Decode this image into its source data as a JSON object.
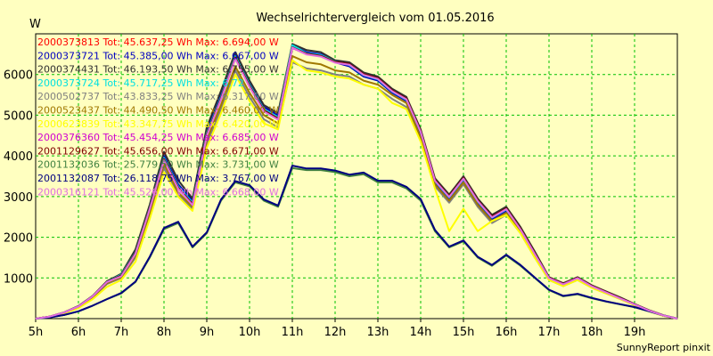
{
  "chart_data": {
    "type": "line",
    "title": "Wechselrichtervergleich vom 01.05.2016",
    "ylabel": "W",
    "credit": "SunnyReport pinxit",
    "xlim": [
      5,
      20
    ],
    "ylim": [
      0,
      7000
    ],
    "x_ticks": [
      5,
      6,
      7,
      8,
      9,
      10,
      11,
      12,
      13,
      14,
      15,
      16,
      17,
      18,
      19
    ],
    "x_tick_labels": [
      "5h",
      "6h",
      "7h",
      "8h",
      "9h",
      "10h",
      "11h",
      "12h",
      "13h",
      "14h",
      "15h",
      "16h",
      "17h",
      "18h",
      "19h"
    ],
    "y_ticks": [
      1000,
      2000,
      3000,
      4000,
      5000,
      6000
    ],
    "y_tick_labels": [
      "1000",
      "2000",
      "3000",
      "4000",
      "5000",
      "6000"
    ],
    "grid": true,
    "legend_position": "top-left",
    "x": [
      5.0,
      5.333,
      5.667,
      6.0,
      6.333,
      6.667,
      7.0,
      7.333,
      7.667,
      8.0,
      8.333,
      8.667,
      9.0,
      9.333,
      9.667,
      10.0,
      10.333,
      10.667,
      11.0,
      11.333,
      11.667,
      12.0,
      12.333,
      12.667,
      13.0,
      13.333,
      13.667,
      14.0,
      14.333,
      14.667,
      15.0,
      15.333,
      15.667,
      16.0,
      16.333,
      16.667,
      17.0,
      17.333,
      17.667,
      18.0,
      18.333,
      18.667,
      19.0,
      19.333,
      19.667,
      20.0
    ],
    "series": [
      {
        "name": "2000373813",
        "legend": "2000373813 Tot: 45.637,25 Wh Max: 6.694,00 W",
        "color": "#ff0000",
        "values": [
          0,
          50,
          150,
          300,
          550,
          900,
          1050,
          1600,
          2700,
          3900,
          3200,
          2800,
          4500,
          5400,
          6400,
          5700,
          5100,
          4900,
          6700,
          6500,
          6450,
          6300,
          6250,
          6000,
          5900,
          5600,
          5400,
          4600,
          3400,
          3000,
          3450,
          2900,
          2500,
          2700,
          2200,
          1600,
          1000,
          850,
          1000,
          800,
          650,
          500,
          350,
          200,
          80,
          0
        ]
      },
      {
        "name": "2000373721",
        "legend": "2000373721 Tot: 45.385,00 Wh Max: 6.667,00 W",
        "color": "#0000c0",
        "values": [
          0,
          50,
          150,
          300,
          550,
          900,
          1100,
          1650,
          2750,
          4000,
          3300,
          2900,
          4600,
          5500,
          6500,
          5800,
          5200,
          5000,
          6700,
          6550,
          6500,
          6300,
          6200,
          5950,
          5850,
          5550,
          5350,
          4550,
          3350,
          2950,
          3400,
          2850,
          2450,
          2650,
          2150,
          1550,
          980,
          830,
          980,
          790,
          640,
          490,
          340,
          190,
          70,
          0
        ]
      },
      {
        "name": "2000374431",
        "legend": "2000374431 Tot: 46.193,50 Wh Max: 6.755,00 W",
        "color": "#303030",
        "values": [
          0,
          50,
          155,
          310,
          560,
          920,
          1100,
          1700,
          2800,
          4100,
          3400,
          2950,
          4700,
          5600,
          6550,
          5850,
          5250,
          5050,
          6750,
          6600,
          6550,
          6350,
          6300,
          6050,
          5950,
          5650,
          5450,
          4650,
          3450,
          3050,
          3500,
          2950,
          2550,
          2750,
          2250,
          1650,
          1020,
          870,
          1020,
          820,
          670,
          520,
          360,
          210,
          85,
          0
        ]
      },
      {
        "name": "2000373724",
        "legend": "2000373724 Tot: 45.717,25 Wh Max: 6.72",
        "color": "#00e0e0",
        "values": [
          0,
          50,
          150,
          300,
          550,
          900,
          1080,
          1620,
          2720,
          3950,
          3250,
          2850,
          4550,
          5450,
          6450,
          5750,
          5150,
          4950,
          6720,
          6520,
          6480,
          6320,
          6230,
          5980,
          5880,
          5580,
          5380,
          4580,
          3380,
          2980,
          3430,
          2880,
          2480,
          2680,
          2180,
          1580,
          990,
          840,
          990,
          800,
          650,
          500,
          345,
          195,
          75,
          0
        ]
      },
      {
        "name": "2000502737",
        "legend": "2000502737 Tot: 43.833,25 Wh Max: 6.317,00 W",
        "color": "#808080",
        "values": [
          0,
          45,
          140,
          280,
          520,
          850,
          1000,
          1500,
          2550,
          3700,
          3050,
          2700,
          4300,
          5150,
          6100,
          5450,
          4900,
          4700,
          6300,
          6150,
          6100,
          6000,
          5950,
          5750,
          5650,
          5400,
          5200,
          4400,
          3250,
          2850,
          3300,
          2750,
          2350,
          2550,
          2100,
          1500,
          950,
          800,
          950,
          760,
          620,
          480,
          330,
          185,
          70,
          0
        ]
      },
      {
        "name": "2000523437",
        "legend": "2000523437 Tot: 44.490,50 Wh Max: 6.460,00 W",
        "color": "#a07800",
        "values": [
          0,
          45,
          145,
          290,
          530,
          870,
          1020,
          1550,
          2600,
          3800,
          3100,
          2750,
          4400,
          5250,
          6200,
          5550,
          5000,
          4800,
          6450,
          6300,
          6250,
          6100,
          6050,
          5850,
          5750,
          5500,
          5300,
          4450,
          3300,
          2900,
          3350,
          2800,
          2400,
          2600,
          2150,
          1550,
          970,
          820,
          970,
          780,
          630,
          490,
          335,
          190,
          72,
          0
        ]
      },
      {
        "name": "2000623839",
        "legend": "2000623839 Tot: 43.347,75 Wh Max: 6.420,00 W",
        "color": "#ffff00",
        "values": [
          0,
          40,
          130,
          260,
          480,
          780,
          950,
          1400,
          2450,
          3600,
          3000,
          2650,
          4200,
          5050,
          6000,
          5350,
          4800,
          4650,
          6350,
          6100,
          6050,
          5950,
          5900,
          5750,
          5650,
          5300,
          5150,
          4350,
          3200,
          2150,
          2700,
          2150,
          2400,
          2550,
          2100,
          1500,
          950,
          800,
          950,
          760,
          620,
          480,
          330,
          185,
          70,
          0
        ]
      },
      {
        "name": "2000376360",
        "legend": "2000376360 Tot: 45.454,25 Wh Max: 6.685,00 W",
        "color": "#d000d0",
        "values": [
          0,
          50,
          150,
          300,
          550,
          900,
          1050,
          1600,
          2700,
          3900,
          3200,
          2800,
          4500,
          5400,
          6400,
          5700,
          5100,
          4900,
          6650,
          6500,
          6450,
          6300,
          6250,
          6000,
          5900,
          5600,
          5400,
          4600,
          3400,
          3000,
          3450,
          2900,
          2500,
          2700,
          2200,
          1600,
          1000,
          850,
          1000,
          800,
          650,
          500,
          350,
          200,
          80,
          0
        ]
      },
      {
        "name": "2001129627",
        "legend": "2001129627 Tot: 45.656,00 Wh Max: 6.671,00 W",
        "color": "#800000",
        "values": [
          0,
          50,
          150,
          300,
          550,
          900,
          1060,
          1610,
          2710,
          3920,
          3220,
          2820,
          4520,
          5420,
          6420,
          5720,
          5120,
          4920,
          6670,
          6510,
          6460,
          6310,
          6260,
          6010,
          5910,
          5610,
          5410,
          4610,
          3410,
          3010,
          3460,
          2910,
          2510,
          2710,
          2210,
          1610,
          1005,
          855,
          1005,
          805,
          655,
          505,
          352,
          202,
          80,
          0
        ]
      },
      {
        "name": "2001132036",
        "legend": "2001132036 Tot: 25.779,50 Wh Max: 3.731,00 W",
        "color": "#408040",
        "values": [
          0,
          30,
          90,
          180,
          320,
          480,
          620,
          900,
          1500,
          2200,
          2350,
          1750,
          2100,
          2900,
          3350,
          3250,
          2900,
          2750,
          3700,
          3650,
          3650,
          3600,
          3500,
          3550,
          3350,
          3350,
          3200,
          2900,
          2150,
          1750,
          1900,
          1500,
          1300,
          1550,
          1300,
          1000,
          700,
          550,
          600,
          500,
          420,
          350,
          280,
          180,
          80,
          0
        ]
      },
      {
        "name": "2001132087",
        "legend": "2001132087 Tot: 26.118,75 Wh Max: 3.767,00 W",
        "color": "#000080",
        "values": [
          0,
          30,
          90,
          180,
          320,
          480,
          630,
          910,
          1520,
          2230,
          2380,
          1770,
          2120,
          2930,
          3380,
          3280,
          2930,
          2780,
          3760,
          3690,
          3690,
          3640,
          3540,
          3590,
          3390,
          3390,
          3240,
          2940,
          2180,
          1770,
          1920,
          1520,
          1320,
          1570,
          1320,
          1010,
          710,
          560,
          610,
          510,
          425,
          355,
          285,
          185,
          82,
          0
        ]
      },
      {
        "name": "2000316121",
        "legend": "2000316121 Tot: 45.526,00 Wh Max: 6.668,00 W",
        "color": "#e070e0",
        "values": [
          0,
          50,
          150,
          300,
          550,
          900,
          1040,
          1590,
          2690,
          3890,
          3190,
          2790,
          4490,
          5390,
          6390,
          5690,
          5090,
          4890,
          6660,
          6490,
          6440,
          6290,
          6240,
          5990,
          5890,
          5590,
          5390,
          4590,
          3390,
          2990,
          3440,
          2890,
          2490,
          2690,
          2190,
          1590,
          995,
          845,
          995,
          795,
          645,
          495,
          348,
          198,
          78,
          0
        ]
      }
    ]
  }
}
